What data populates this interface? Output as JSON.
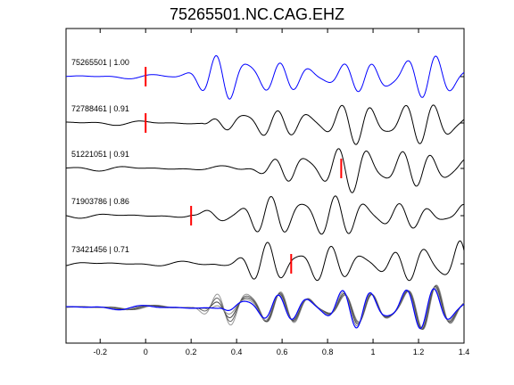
{
  "chart_data": {
    "type": "line",
    "title": "75265501.NC.CAG.EHZ",
    "xlabel": "",
    "ylabel": "",
    "xlim": [
      -0.35,
      1.4
    ],
    "xticks": [
      "-0.2",
      "0",
      "0.2",
      "0.4",
      "0.6",
      "0.8",
      "1",
      "1.2",
      "1.4"
    ],
    "xtick_values": [
      -0.2,
      0,
      0.2,
      0.4,
      0.6,
      0.8,
      1.0,
      1.2,
      1.4
    ],
    "grid": false,
    "legend": "none",
    "colors": {
      "reference": "#0000ff",
      "trace": "#000000",
      "pick": "#ff0000",
      "stack_other": "#777777"
    },
    "series": [
      {
        "label": "75265501 | 1.00",
        "pick_time": 0.0,
        "onset": 0.12,
        "amp_scale": 0.95,
        "color": "#0000ff"
      },
      {
        "label": "72788461 | 0.91",
        "pick_time": 0.0,
        "onset": 0.25,
        "amp_scale": 1.0,
        "color": "#000000"
      },
      {
        "label": "51221051 | 0.91",
        "pick_time": 0.86,
        "onset": 0.4,
        "amp_scale": 1.05,
        "color": "#000000"
      },
      {
        "label": "71903786 | 0.86",
        "pick_time": 0.2,
        "onset": 0.2,
        "amp_scale": 1.0,
        "color": "#000000"
      },
      {
        "label": "73421456 | 0.71",
        "pick_time": 0.64,
        "onset": 0.3,
        "amp_scale": 1.05,
        "color": "#000000"
      }
    ]
  }
}
